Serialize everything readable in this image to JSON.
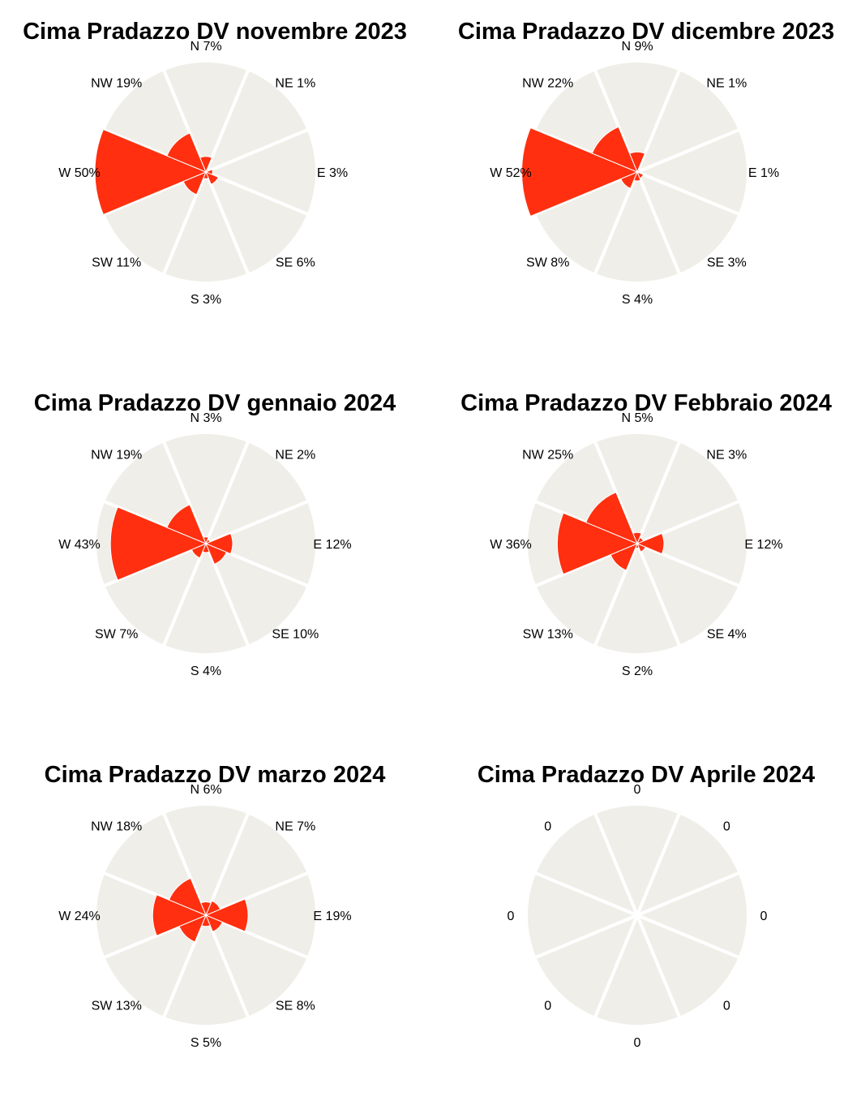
{
  "colors": {
    "sector_bg": "#efeee8",
    "sector_value": "#ff2f0f",
    "separator": "#ffffff"
  },
  "directions": [
    "N",
    "NE",
    "E",
    "SE",
    "S",
    "SW",
    "W",
    "NW"
  ],
  "chart_data": [
    {
      "type": "radar",
      "title": "Cima Pradazzo DV novembre 2023",
      "values": [
        7,
        1,
        3,
        6,
        3,
        11,
        50,
        19
      ],
      "labels": [
        "N 7%",
        "NE 1%",
        "E  3%",
        "SE 6%",
        "S 3%",
        "SW 11%",
        "W 50%",
        "NW 19%"
      ],
      "rmax": 50
    },
    {
      "type": "radar",
      "title": "Cima Pradazzo DV dicembre 2023",
      "values": [
        9,
        1,
        1,
        3,
        4,
        8,
        52,
        22
      ],
      "labels": [
        "N 9%",
        "NE 1%",
        "E  1%",
        "SE 3%",
        "S 4%",
        "SW 8%",
        "W 52%",
        "NW 22%"
      ],
      "rmax": 50
    },
    {
      "type": "radar",
      "title": "Cima Pradazzo DV gennaio 2024",
      "values": [
        3,
        2,
        12,
        10,
        4,
        7,
        43,
        19
      ],
      "labels": [
        "N 3%",
        "NE 2%",
        "E  12%",
        "SE 10%",
        "S 4%",
        "SW 7%",
        "W 43%",
        "NW 19%"
      ],
      "rmax": 50
    },
    {
      "type": "radar",
      "title": "Cima Pradazzo DV Febbraio 2024",
      "values": [
        5,
        3,
        12,
        4,
        2,
        13,
        36,
        25
      ],
      "labels": [
        "N 5%",
        "NE 3%",
        "E  12%",
        "SE 4%",
        "S 2%",
        "SW 13%",
        "W 36%",
        "NW 25%"
      ],
      "rmax": 50
    },
    {
      "type": "radar",
      "title": "Cima Pradazzo DV marzo  2024",
      "values": [
        6,
        7,
        19,
        8,
        5,
        13,
        24,
        18
      ],
      "labels": [
        "N 6%",
        "NE 7%",
        "E  19%",
        "SE 8%",
        "S 5%",
        "SW 13%",
        "W 24%",
        "NW 18%"
      ],
      "rmax": 50
    },
    {
      "type": "radar",
      "title": "Cima Pradazzo DV Aprile 2024",
      "values": [
        0,
        0,
        0,
        0,
        0,
        0,
        0,
        0
      ],
      "labels": [
        "0",
        "0",
        "0",
        "0",
        "0",
        "0",
        "0",
        "0"
      ],
      "rmax": 50
    }
  ]
}
